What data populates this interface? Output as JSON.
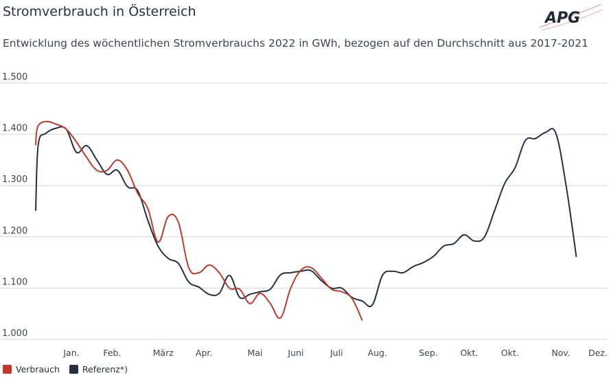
{
  "header": {
    "title": "Stromverbrauch in Österreich",
    "subtitle": "Entwicklung des wöchentlichen Stromverbrauchs 2022 in GWh, bezogen auf den Durchschnitt aus 2017-2021",
    "logo_text": "APG"
  },
  "colors": {
    "verbrauch": "#c0392b",
    "referenz": "#223040",
    "grid": "#d6d6d6",
    "logo": "#1e2a38",
    "logo_swoosh": "#e59a94"
  },
  "chart_data": {
    "type": "line",
    "xlabel": "",
    "ylabel": "",
    "ylim": [
      1000,
      1500
    ],
    "y_ticks": [
      1000,
      1100,
      1200,
      1300,
      1400,
      1500
    ],
    "y_tick_labels": [
      "1.000",
      "1.100",
      "1.200",
      "1.300",
      "1.400",
      "1.500"
    ],
    "x_tick_weeks": [
      3.5,
      7.5,
      12.5,
      16.5,
      21.5,
      25.5,
      29.5,
      33.5,
      38.5,
      42.5,
      46.5,
      51.5,
      56
    ],
    "x_tick_labels": [
      "Jan.",
      "Feb.",
      "März",
      "Apr.",
      "Mai",
      "Juni",
      "Juli",
      "Aug.",
      "Sep.",
      "Okt.",
      "Okt.",
      "Nov.",
      "Dez."
    ],
    "xlim": [
      0,
      56
    ],
    "grid": true,
    "legend_position": "bottom-left",
    "series": [
      {
        "name": "Verbrauch",
        "x": [
          0,
          0.2,
          1,
          2,
          3,
          4,
          5,
          6,
          7,
          8,
          9,
          10,
          11,
          12,
          13,
          14,
          15,
          16,
          17,
          18,
          19,
          20,
          21,
          22,
          23,
          24,
          25,
          26,
          27,
          28,
          29,
          30,
          31,
          32,
          33
        ],
        "values": [
          1380,
          1415,
          1425,
          1420,
          1410,
          1385,
          1355,
          1330,
          1330,
          1350,
          1330,
          1285,
          1255,
          1190,
          1240,
          1228,
          1140,
          1130,
          1145,
          1130,
          1100,
          1098,
          1070,
          1090,
          1070,
          1042,
          1100,
          1135,
          1140,
          1120,
          1098,
          1093,
          1080,
          1038,
          null
        ]
      },
      {
        "name": "Referenz*)",
        "x": [
          0,
          0.25,
          1,
          2,
          3,
          4,
          5,
          6,
          7,
          8,
          9,
          10,
          11,
          12,
          13,
          14,
          15,
          16,
          17,
          18,
          19,
          20,
          21,
          22,
          23,
          24,
          25,
          26,
          27,
          28,
          29,
          30,
          31,
          32,
          33,
          34,
          35,
          36,
          37,
          38,
          39,
          40,
          41,
          42,
          43,
          44,
          45,
          46,
          47,
          48,
          49,
          50,
          51,
          52,
          53,
          54,
          55,
          56
        ],
        "values": [
          1252,
          1380,
          1402,
          1412,
          1410,
          1365,
          1378,
          1350,
          1322,
          1330,
          1298,
          1290,
          1232,
          1182,
          1158,
          1148,
          1112,
          1102,
          1088,
          1090,
          1125,
          1082,
          1088,
          1093,
          1098,
          1126,
          1130,
          1133,
          1134,
          1115,
          1100,
          1100,
          1082,
          1075,
          1067,
          1125,
          1133,
          1130,
          1142,
          1150,
          1162,
          1182,
          1187,
          1204,
          1192,
          1200,
          1252,
          1305,
          1335,
          1388,
          1392,
          1404,
          1402,
          1300,
          1162,
          null,
          null,
          null
        ]
      }
    ]
  },
  "legend": {
    "items": [
      {
        "label": "Verbrauch"
      },
      {
        "label": "Referenz*)"
      }
    ]
  }
}
